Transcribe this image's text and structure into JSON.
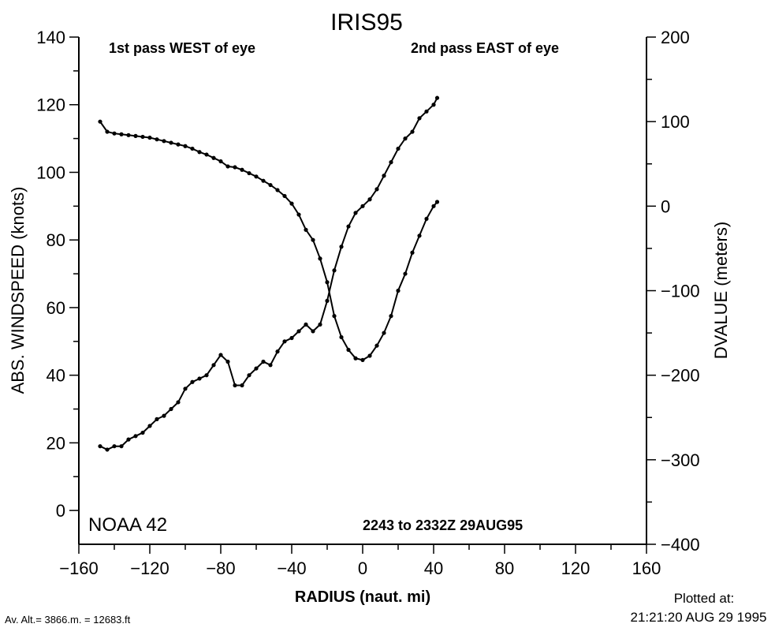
{
  "chart_data": {
    "type": "line",
    "title": "IRIS95",
    "xlabel": "RADIUS (naut. mi)",
    "ylabel": "ABS. WINDSPEED (knots)",
    "y2label": "DVALUE (meters)",
    "xlim": [
      -160,
      160
    ],
    "ylim": [
      -10,
      140
    ],
    "y2lim": [
      -400,
      200
    ],
    "xticks": [
      -160,
      -120,
      -80,
      -40,
      0,
      40,
      80,
      120,
      160
    ],
    "yticks": [
      0,
      20,
      40,
      60,
      80,
      100,
      120,
      140
    ],
    "y2ticks": [
      -400,
      -300,
      -200,
      -100,
      0,
      100,
      200
    ],
    "annotations": {
      "pass1": "1st pass WEST of eye",
      "pass2": "2nd pass EAST of eye",
      "aircraft": "NOAA 42",
      "time_range": "2243 to 2332Z 29AUG95"
    },
    "series": [
      {
        "name": "ABS. WINDSPEED",
        "axis": "left",
        "x": [
          -148,
          -144,
          -140,
          -136,
          -132,
          -128,
          -124,
          -120,
          -116,
          -112,
          -108,
          -104,
          -100,
          -96,
          -92,
          -88,
          -84,
          -80,
          -76,
          -72,
          -68,
          -64,
          -60,
          -56,
          -52,
          -48,
          -44,
          -40,
          -36,
          -32,
          -28,
          -24,
          -20,
          -16,
          -12,
          -8,
          -4,
          0,
          4,
          8,
          12,
          16,
          20,
          24,
          28,
          32,
          36,
          40,
          42
        ],
        "values": [
          19,
          18,
          19,
          19,
          21,
          22,
          23,
          25,
          27,
          28,
          30,
          32,
          36,
          38,
          39,
          40,
          43,
          46,
          44,
          37,
          37,
          40,
          42,
          44,
          43,
          47,
          50,
          51,
          53,
          55,
          53,
          55,
          62,
          71,
          78,
          84,
          88,
          90,
          92,
          95,
          99,
          103,
          107,
          110,
          112,
          116,
          118,
          120,
          122
        ]
      },
      {
        "name": "DVALUE",
        "axis": "right",
        "x": [
          -148,
          -144,
          -140,
          -136,
          -132,
          -128,
          -124,
          -120,
          -116,
          -112,
          -108,
          -104,
          -100,
          -96,
          -92,
          -88,
          -84,
          -80,
          -76,
          -72,
          -68,
          -64,
          -60,
          -56,
          -52,
          -48,
          -44,
          -40,
          -36,
          -32,
          -28,
          -24,
          -20,
          -16,
          -12,
          -8,
          -4,
          0,
          4,
          8,
          12,
          16,
          20,
          24,
          28,
          32,
          36,
          40,
          42
        ],
        "values": [
          100,
          88,
          86,
          85,
          84,
          83,
          82,
          81,
          79,
          77,
          75,
          73,
          71,
          68,
          64,
          61,
          57,
          53,
          47,
          46,
          43,
          39,
          35,
          30,
          25,
          19,
          12,
          3,
          -10,
          -28,
          -40,
          -62,
          -90,
          -130,
          -155,
          -170,
          -180,
          -182,
          -177,
          -165,
          -150,
          -130,
          -100,
          -80,
          -55,
          -35,
          -15,
          0,
          5
        ]
      }
    ]
  },
  "footer": {
    "altitude": "Av. Alt.= 3866.m. = 12683.ft",
    "plotted_label": "Plotted at:",
    "plotted_time": "21:21:20 AUG 29 1995"
  }
}
